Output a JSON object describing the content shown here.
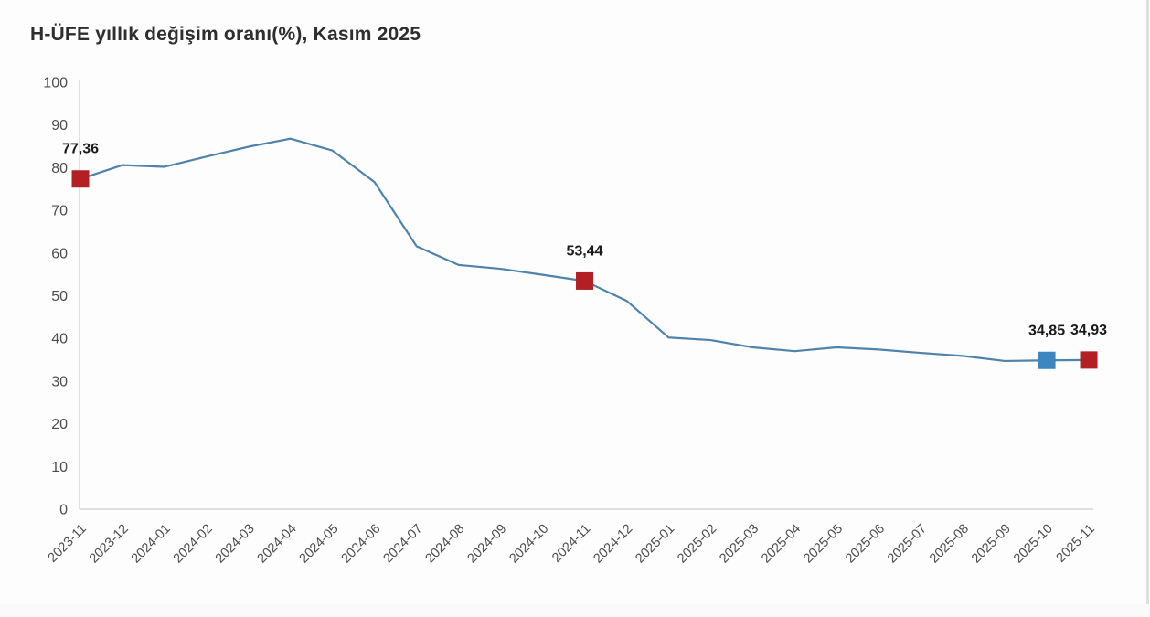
{
  "title": "H-ÜFE yıllık değişim oranı(%), Kasım 2025",
  "colors": {
    "line": "#4d83ac",
    "marker_red": "#b22024",
    "marker_blue": "#3d86c0",
    "axis_line": "#d6d6d6",
    "title_text": "#2e2e2e",
    "tick_text": "#4d4d4d",
    "point_label_text": "#1a1a1a",
    "background": "#fdfdfd"
  },
  "chart_data": {
    "type": "line",
    "title": "H-ÜFE yıllık değişim oranı(%), Kasım 2025",
    "xlabel": "",
    "ylabel": "",
    "ylim": [
      0,
      100
    ],
    "yticks": [
      0,
      10,
      20,
      30,
      40,
      50,
      60,
      70,
      80,
      90,
      100
    ],
    "grid": false,
    "legend": "none",
    "categories": [
      "2023-11",
      "2023-12",
      "2024-01",
      "2024-02",
      "2024-03",
      "2024-04",
      "2024-05",
      "2024-06",
      "2024-07",
      "2024-08",
      "2024-09",
      "2024-10",
      "2024-11",
      "2024-12",
      "2025-01",
      "2025-02",
      "2025-03",
      "2025-04",
      "2025-05",
      "2025-06",
      "2025-07",
      "2025-08",
      "2025-09",
      "2025-10",
      "2025-11"
    ],
    "series": [
      {
        "name": "H-ÜFE yıllık değişim oranı (%)",
        "values": [
          77.36,
          80.6,
          80.2,
          82.6,
          84.9,
          86.8,
          84.0,
          76.6,
          61.6,
          57.2,
          56.3,
          54.9,
          53.44,
          48.8,
          40.2,
          39.6,
          37.9,
          37.0,
          37.9,
          37.4,
          36.6,
          35.9,
          34.7,
          34.85,
          34.93
        ]
      }
    ],
    "point_labels": [
      {
        "index": 0,
        "category": "2023-11",
        "text": "77,36",
        "value": 77.36,
        "marker": "red"
      },
      {
        "index": 12,
        "category": "2024-11",
        "text": "53,44",
        "value": 53.44,
        "marker": "red"
      },
      {
        "index": 23,
        "category": "2025-10",
        "text": "34,85",
        "value": 34.85,
        "marker": "blue"
      },
      {
        "index": 24,
        "category": "2025-11",
        "text": "34,93",
        "value": 34.93,
        "marker": "red"
      }
    ]
  }
}
